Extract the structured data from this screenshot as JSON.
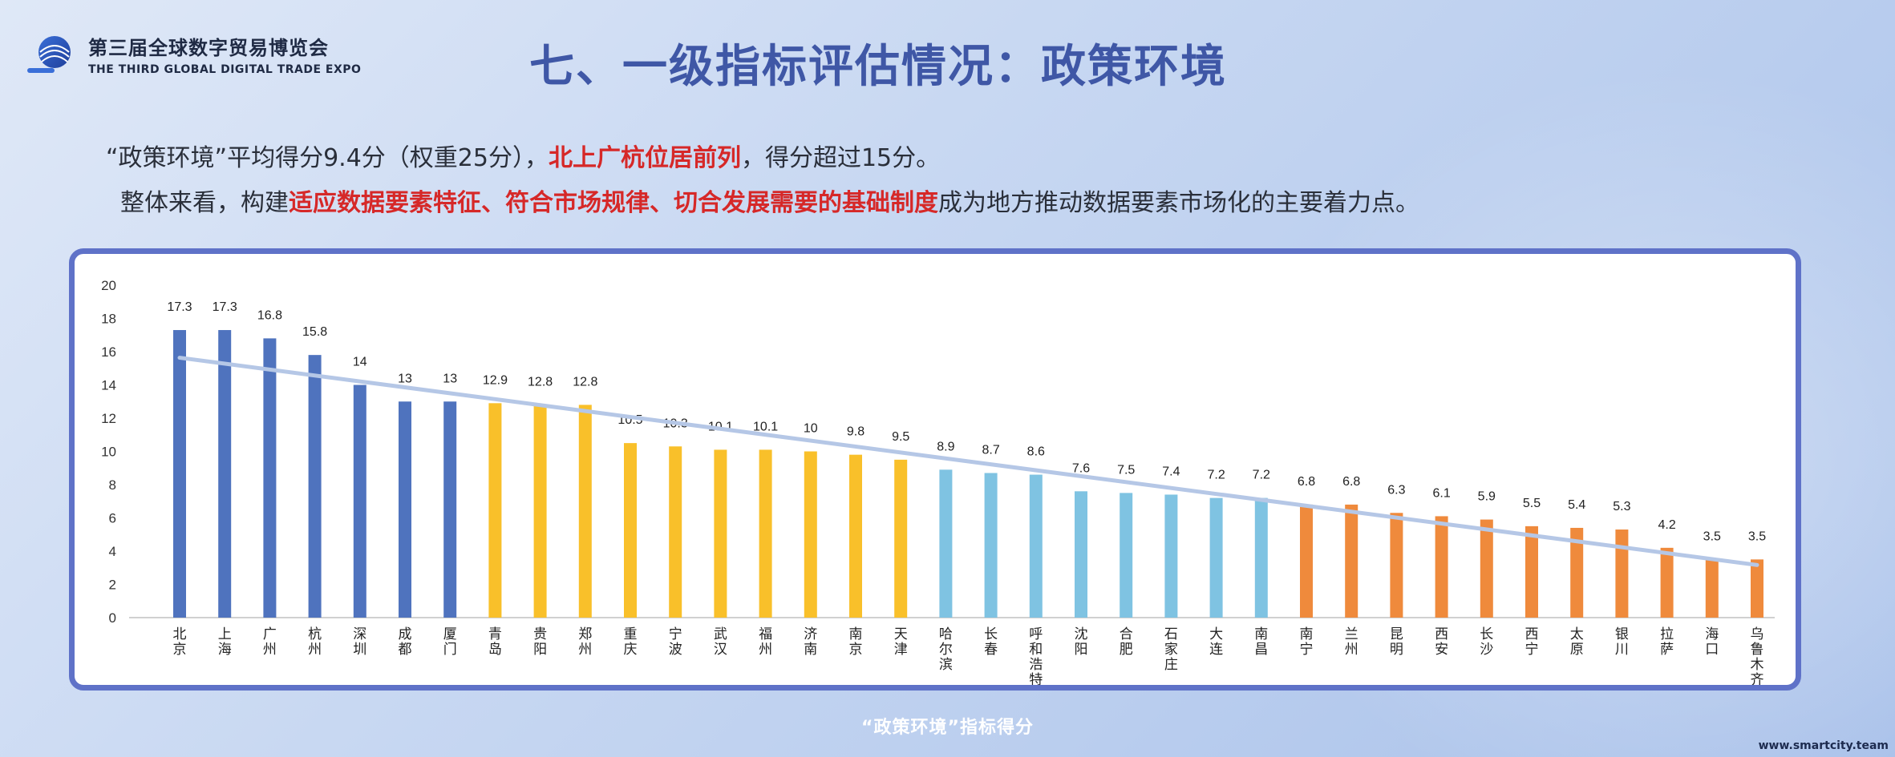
{
  "header": {
    "logo_cn": "第三届全球数字贸易博览会",
    "logo_en": "THE THIRD GLOBAL DIGITAL TRADE EXPO",
    "title": "七、一级指标评估情况：政策环境"
  },
  "summary": {
    "line1_a": "“政策环境”平均得分9.4分（权重25分），",
    "line1_red": "北上广杭位居前列",
    "line1_b": "，得分超过15分。",
    "line2_a": "整体来看，构建",
    "line2_red": "适应数据要素特征、符合市场规律、切合发展需要的基础制度",
    "line2_b": "成为地方推动数据要素市场化的主要着力点。"
  },
  "caption": "“政策环境”指标得分",
  "watermark": "www.smartcity.team",
  "colors": {
    "group1": "#4f73be",
    "group2": "#f9c02a",
    "group3": "#7fc3e2",
    "group4": "#ef8a3c",
    "trend": "#b5c7e6"
  },
  "chart_data": {
    "type": "bar",
    "categories": [
      "北京",
      "上海",
      "广州",
      "杭州",
      "深圳",
      "成都",
      "厦门",
      "青岛",
      "贵阳",
      "郑州",
      "重庆",
      "宁波",
      "武汉",
      "福州",
      "济南",
      "南京",
      "天津",
      "哈尔滨",
      "长春",
      "呼和浩特",
      "沈阳",
      "合肥",
      "石家庄",
      "大连",
      "南昌",
      "南宁",
      "兰州",
      "昆明",
      "西安",
      "长沙",
      "西宁",
      "太原",
      "银川",
      "拉萨",
      "海口",
      "乌鲁木齐"
    ],
    "values": [
      17.3,
      17.3,
      16.8,
      15.8,
      14,
      13,
      13,
      12.9,
      12.8,
      12.8,
      10.5,
      10.3,
      10.1,
      10.1,
      10,
      9.8,
      9.5,
      8.9,
      8.7,
      8.6,
      7.6,
      7.5,
      7.4,
      7.2,
      7.2,
      6.8,
      6.8,
      6.3,
      6.1,
      5.9,
      5.5,
      5.4,
      5.3,
      4.2,
      3.5,
      3.5
    ],
    "groups": [
      1,
      1,
      1,
      1,
      1,
      1,
      1,
      2,
      2,
      2,
      2,
      2,
      2,
      2,
      2,
      2,
      2,
      3,
      3,
      3,
      3,
      3,
      3,
      3,
      3,
      4,
      4,
      4,
      4,
      4,
      4,
      4,
      4,
      4,
      4,
      4
    ],
    "ylim": [
      0,
      20
    ],
    "yticks": [
      0,
      2,
      4,
      6,
      8,
      10,
      12,
      14,
      16,
      18,
      20
    ],
    "trendline": "linear",
    "grid": false
  }
}
